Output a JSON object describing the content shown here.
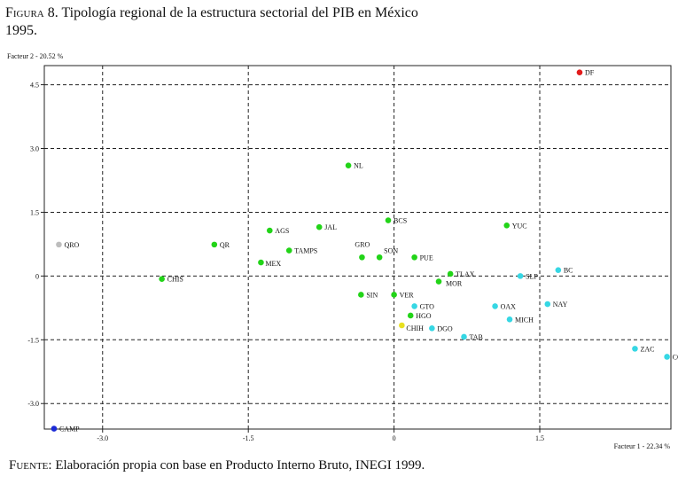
{
  "figure": {
    "label": "Figura 8.",
    "title": "Tipología regional de la estructura sectorial del PIB en México",
    "year": "1995."
  },
  "source": {
    "label": "Fuente:",
    "text": "Elaboración propia con base en Producto Interno Bruto, INEGI 1999."
  },
  "chart_data": {
    "type": "scatter",
    "xlabel": "Facteur 1  -  22.34 %",
    "ylabel": "Facteur 2  -  20.52 %",
    "xlim": [
      -3.6,
      2.85
    ],
    "ylim": [
      -3.6,
      4.95
    ],
    "xticks": [
      -3.0,
      -1.5,
      0,
      1.5
    ],
    "xtick_labels": [
      "-3.0",
      "-1.5",
      "0",
      "1.5"
    ],
    "yticks": [
      4.5,
      3.0,
      1.5,
      0,
      -1.5,
      -3.0
    ],
    "ytick_labels": [
      "4.5",
      "3.0",
      "1.5",
      "0",
      "-1.5",
      "-3.0"
    ],
    "grid": true,
    "colors": {
      "red": "#e21b1b",
      "green": "#22d418",
      "cyan": "#36d7e4",
      "gray": "#bdbdbd",
      "blue": "#1b2ad6",
      "yellow": "#e8e020"
    },
    "points": [
      {
        "label": "DF",
        "x": 1.91,
        "y": 4.79,
        "color": "red"
      },
      {
        "label": "NL",
        "x": -0.47,
        "y": 2.6,
        "color": "green"
      },
      {
        "label": "BCS",
        "x": -0.06,
        "y": 1.31,
        "color": "green"
      },
      {
        "label": "YUC",
        "x": 1.16,
        "y": 1.19,
        "color": "green"
      },
      {
        "label": "JAL",
        "x": -0.77,
        "y": 1.15,
        "color": "green"
      },
      {
        "label": "AGS",
        "x": -1.28,
        "y": 1.07,
        "color": "green"
      },
      {
        "label": "QRO",
        "x": -3.45,
        "y": 0.74,
        "color": "gray"
      },
      {
        "label": "QR",
        "x": -1.85,
        "y": 0.74,
        "color": "green"
      },
      {
        "label": "TAMPS",
        "x": -1.08,
        "y": 0.6,
        "color": "green"
      },
      {
        "label": "GRO",
        "x": -0.33,
        "y": 0.44,
        "color": "green",
        "dx": -8,
        "dy": -12
      },
      {
        "label": "SON",
        "x": -0.15,
        "y": 0.44,
        "color": "green",
        "dx": 5,
        "dy": -5
      },
      {
        "label": "PUE",
        "x": 0.21,
        "y": 0.44,
        "color": "green"
      },
      {
        "label": "MEX",
        "x": -1.37,
        "y": 0.32,
        "color": "green",
        "dx": 5,
        "dy": 4
      },
      {
        "label": "BC",
        "x": 1.69,
        "y": 0.14,
        "color": "cyan"
      },
      {
        "label": "TLAX",
        "x": 0.58,
        "y": 0.05,
        "color": "green"
      },
      {
        "label": "SLP",
        "x": 1.3,
        "y": 0.0,
        "color": "cyan"
      },
      {
        "label": "CHIS",
        "x": -2.39,
        "y": -0.07,
        "color": "green"
      },
      {
        "label": "MOR",
        "x": 0.46,
        "y": -0.13,
        "color": "green",
        "dx": 8,
        "dy": 5
      },
      {
        "label": "SIN",
        "x": -0.34,
        "y": -0.44,
        "color": "green"
      },
      {
        "label": "VER",
        "x": 0.0,
        "y": -0.44,
        "color": "green"
      },
      {
        "label": "NAY",
        "x": 1.58,
        "y": -0.66,
        "color": "cyan"
      },
      {
        "label": "GTO",
        "x": 0.21,
        "y": -0.71,
        "color": "cyan"
      },
      {
        "label": "OAX",
        "x": 1.04,
        "y": -0.71,
        "color": "cyan"
      },
      {
        "label": "HGO",
        "x": 0.17,
        "y": -0.93,
        "color": "green"
      },
      {
        "label": "MICH",
        "x": 1.19,
        "y": -1.02,
        "color": "cyan"
      },
      {
        "label": "CHIH",
        "x": 0.08,
        "y": -1.16,
        "color": "yellow",
        "dx": 5,
        "dy": 6
      },
      {
        "label": "DGO",
        "x": 0.39,
        "y": -1.23,
        "color": "cyan"
      },
      {
        "label": "TAB",
        "x": 0.72,
        "y": -1.43,
        "color": "cyan"
      },
      {
        "label": "ZAC",
        "x": 2.48,
        "y": -1.71,
        "color": "cyan"
      },
      {
        "label": "COAH",
        "x": 2.81,
        "y": -1.9,
        "color": "cyan"
      },
      {
        "label": "CAMP",
        "x": -3.5,
        "y": -3.59,
        "color": "blue"
      }
    ]
  }
}
